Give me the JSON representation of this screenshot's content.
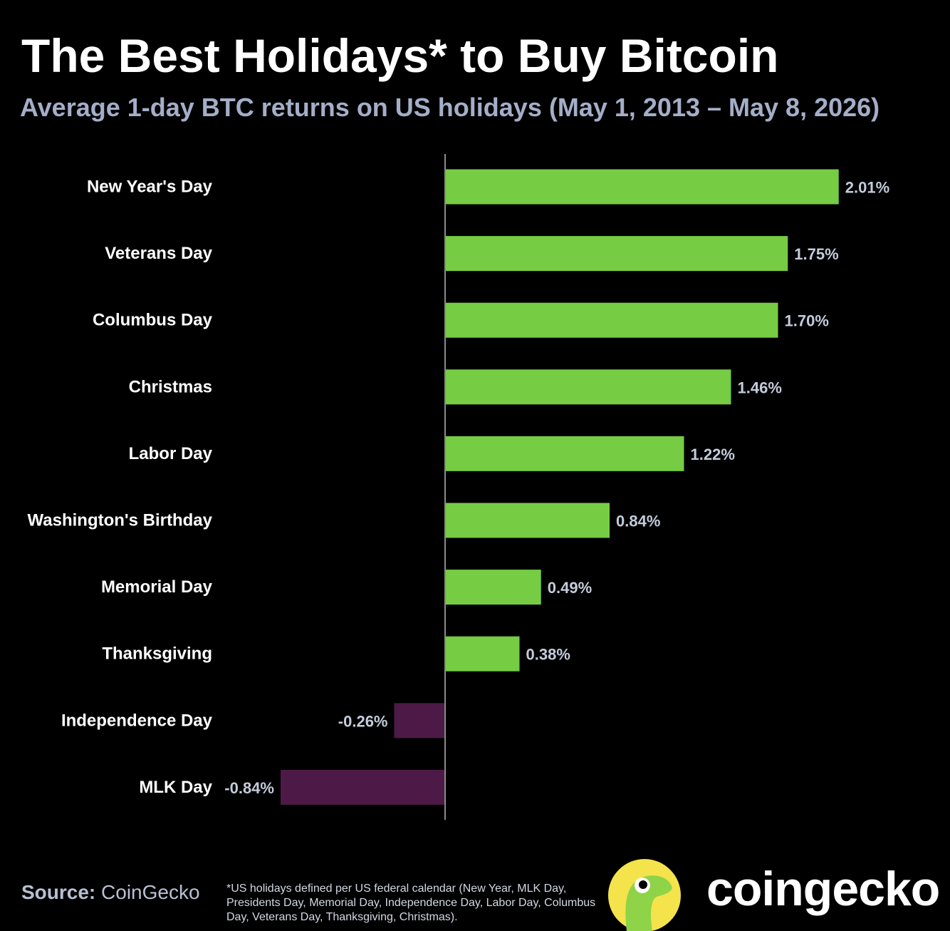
{
  "header": {
    "title": "The Best Holidays* to Buy Bitcoin",
    "subtitle": "Average 1-day BTC returns on US holidays (May 1, 2013 – May 8, 2026)"
  },
  "chart_data": {
    "type": "bar",
    "orientation": "horizontal",
    "categories": [
      "New Year's Day",
      "Veterans Day",
      "Columbus Day",
      "Christmas",
      "Labor Day",
      "Washington's Birthday",
      "Memorial Day",
      "Thanksgiving",
      "Independence Day",
      "MLK Day"
    ],
    "values": [
      2.01,
      1.75,
      1.7,
      1.46,
      1.22,
      0.84,
      0.49,
      0.38,
      -0.26,
      -0.84
    ],
    "value_labels": [
      "2.01%",
      "1.75%",
      "1.70%",
      "1.46%",
      "1.22%",
      "0.84%",
      "0.49%",
      "0.38%",
      "-0.26%",
      "-0.84%"
    ],
    "unit": "%",
    "colors": {
      "positive": "#76cc43",
      "negative": "#4d1a47",
      "axis": "#8a8a8a"
    },
    "grid": false,
    "legend": "none"
  },
  "footer": {
    "source_label": "Source:",
    "source_value": "CoinGecko",
    "footnote": "*US holidays defined per US federal calendar (New Year, MLK Day, Presidents Day, Memorial Day, Independence Day, Labor Day, Columbus Day, Veterans Day, Thanksgiving, Christmas).",
    "brand": "coingecko"
  }
}
